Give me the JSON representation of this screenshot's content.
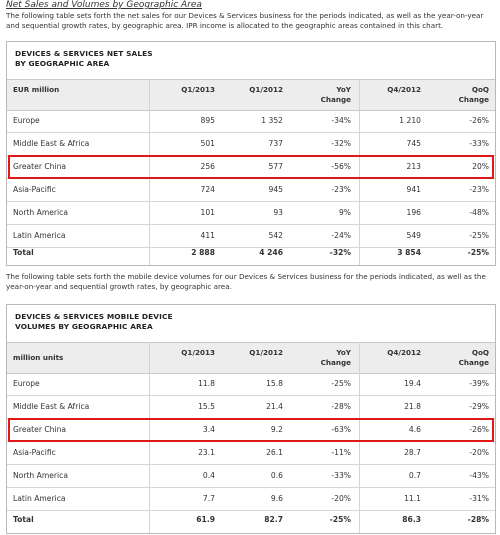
{
  "section_heading": "Net Sales and Volumes by Geographic Area",
  "intro1": "The following table sets forth the net sales for our Devices & Services business for the periods indicated, as well as the year-on-year and sequential growth rates, by geographic area. IPR income is allocated to the geographic areas contained in this chart.",
  "intro2": "The following table sets forth the mobile device volumes for our Devices & Services business for the periods indicated, as well as the year-on-year and sequential growth rates, by geographic area.",
  "table1": {
    "title_line1": "DEVICES & SERVICES NET SALES",
    "title_line2": "BY GEOGRAPHIC AREA",
    "headers": {
      "unit": "EUR million",
      "q1_2013": "Q1/2013",
      "q1_2012": "Q1/2012",
      "yoy_1": "YoY",
      "yoy_2": "Change",
      "q4_2012": "Q4/2012",
      "qoq_1": "QoQ",
      "qoq_2": "Change"
    },
    "rows": [
      {
        "region": "Europe",
        "q1_2013": "895",
        "q1_2012": "1 352",
        "yoy": "-34%",
        "q4_2012": "1 210",
        "qoq": "-26%"
      },
      {
        "region": "Middle East & Africa",
        "q1_2013": "501",
        "q1_2012": "737",
        "yoy": "-32%",
        "q4_2012": "745",
        "qoq": "-33%"
      },
      {
        "region": "Greater China",
        "q1_2013": "256",
        "q1_2012": "577",
        "yoy": "-56%",
        "q4_2012": "213",
        "qoq": "20%"
      },
      {
        "region": "Asia-Pacific",
        "q1_2013": "724",
        "q1_2012": "945",
        "yoy": "-23%",
        "q4_2012": "941",
        "qoq": "-23%"
      },
      {
        "region": "North America",
        "q1_2013": "101",
        "q1_2012": "93",
        "yoy": "9%",
        "q4_2012": "196",
        "qoq": "-48%"
      },
      {
        "region": "Latin America",
        "q1_2013": "411",
        "q1_2012": "542",
        "yoy": "-24%",
        "q4_2012": "549",
        "qoq": "-25%"
      },
      {
        "region": "Total",
        "q1_2013": "2 888",
        "q1_2012": "4 246",
        "yoy": "-32%",
        "q4_2012": "3 854",
        "qoq": "-25%"
      }
    ]
  },
  "table2": {
    "title_line1": "DEVICES & SERVICES MOBILE DEVICE",
    "title_line2": "VOLUMES BY GEOGRAPHIC AREA",
    "headers": {
      "unit": "million units",
      "q1_2013": "Q1/2013",
      "q1_2012": "Q1/2012",
      "yoy_1": "YoY",
      "yoy_2": "Change",
      "q4_2012": "Q4/2012",
      "qoq_1": "QoQ",
      "qoq_2": "Change"
    },
    "rows": [
      {
        "region": "Europe",
        "q1_2013": "11.8",
        "q1_2012": "15.8",
        "yoy": "-25%",
        "q4_2012": "19.4",
        "qoq": "-39%"
      },
      {
        "region": "Middle East & Africa",
        "q1_2013": "15.5",
        "q1_2012": "21.4",
        "yoy": "-28%",
        "q4_2012": "21.8",
        "qoq": "-29%"
      },
      {
        "region": "Greater China",
        "q1_2013": "3.4",
        "q1_2012": "9.2",
        "yoy": "-63%",
        "q4_2012": "4.6",
        "qoq": "-26%"
      },
      {
        "region": "Asia-Pacific",
        "q1_2013": "23.1",
        "q1_2012": "26.1",
        "yoy": "-11%",
        "q4_2012": "28.7",
        "qoq": "-20%"
      },
      {
        "region": "North America",
        "q1_2013": "0.4",
        "q1_2012": "0.6",
        "yoy": "-33%",
        "q4_2012": "0.7",
        "qoq": "-43%"
      },
      {
        "region": "Latin America",
        "q1_2013": "7.7",
        "q1_2012": "9.6",
        "yoy": "-20%",
        "q4_2012": "11.1",
        "qoq": "-31%"
      },
      {
        "region": "Total",
        "q1_2013": "61.9",
        "q1_2012": "82.7",
        "yoy": "-25%",
        "q4_2012": "86.3",
        "qoq": "-28%"
      }
    ]
  },
  "highlight_color": "#e01818"
}
